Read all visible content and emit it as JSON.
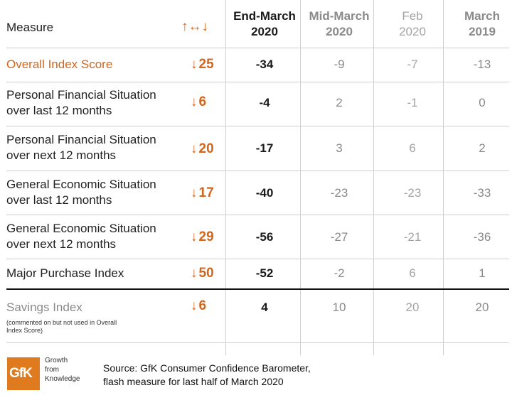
{
  "header": {
    "measure": "Measure",
    "change_icon": "↑↔↓",
    "columns": [
      {
        "line1": "End-March",
        "line2": "2020"
      },
      {
        "line1": "Mid-March",
        "line2": "2020"
      },
      {
        "line1": "Feb",
        "line2": "2020"
      },
      {
        "line1": "March",
        "line2": "2019"
      }
    ]
  },
  "rows": [
    {
      "label1": "Overall Index Score",
      "label2": "",
      "change": "25",
      "values": [
        "-34",
        "-9",
        "-7",
        "-13"
      ]
    },
    {
      "label1": "Personal Financial Situation",
      "label2": "over last 12 months",
      "change": "6",
      "values": [
        "-4",
        "2",
        "-1",
        "0"
      ]
    },
    {
      "label1": "Personal Financial Situation",
      "label2": "over next 12 months",
      "change": "20",
      "values": [
        "-17",
        "3",
        "6",
        "2"
      ]
    },
    {
      "label1": "General Economic Situation",
      "label2": "over last 12 months",
      "change": "17",
      "values": [
        "-40",
        "-23",
        "-23",
        "-33"
      ]
    },
    {
      "label1": "General Economic Situation",
      "label2": "over next 12 months",
      "change": "29",
      "values": [
        "-56",
        "-27",
        "-21",
        "-36"
      ]
    },
    {
      "label1": "Major Purchase Index",
      "label2": "",
      "change": "50",
      "values": [
        "-52",
        "-2",
        "6",
        "1"
      ]
    },
    {
      "label1": "Savings Index",
      "label2": "",
      "change": "6",
      "values": [
        "4",
        "10",
        "20",
        "20"
      ]
    }
  ],
  "savings_note": "(commented on but not used in Overall Index Score)",
  "arrow_symbol": "↓",
  "footer": {
    "logo": "GfK",
    "tagline1": "Growth",
    "tagline2": "from",
    "tagline3": "Knowledge",
    "source1": "Source: GfK Consumer Confidence Barometer,",
    "source2": "flash measure for last half of March 2020"
  },
  "colors": {
    "accent": "#d4661c",
    "logo": "#e07a1f"
  },
  "chart_data": {
    "type": "table",
    "columns": [
      "Measure",
      "Change",
      "End-March 2020",
      "Mid-March 2020",
      "Feb 2020",
      "March 2019"
    ],
    "rows": [
      [
        "Overall Index Score",
        "↓25",
        -34,
        -9,
        -7,
        -13
      ],
      [
        "Personal Financial Situation over last 12 months",
        "↓6",
        -4,
        2,
        -1,
        0
      ],
      [
        "Personal Financial Situation over next 12 months",
        "↓20",
        -17,
        3,
        6,
        2
      ],
      [
        "General Economic Situation over last 12 months",
        "↓17",
        -40,
        -23,
        -23,
        -33
      ],
      [
        "General Economic Situation over next 12 months",
        "↓29",
        -56,
        -27,
        -21,
        -36
      ],
      [
        "Major Purchase Index",
        "↓50",
        -52,
        -2,
        6,
        1
      ],
      [
        "Savings Index",
        "↓6",
        4,
        10,
        20,
        20
      ]
    ]
  }
}
